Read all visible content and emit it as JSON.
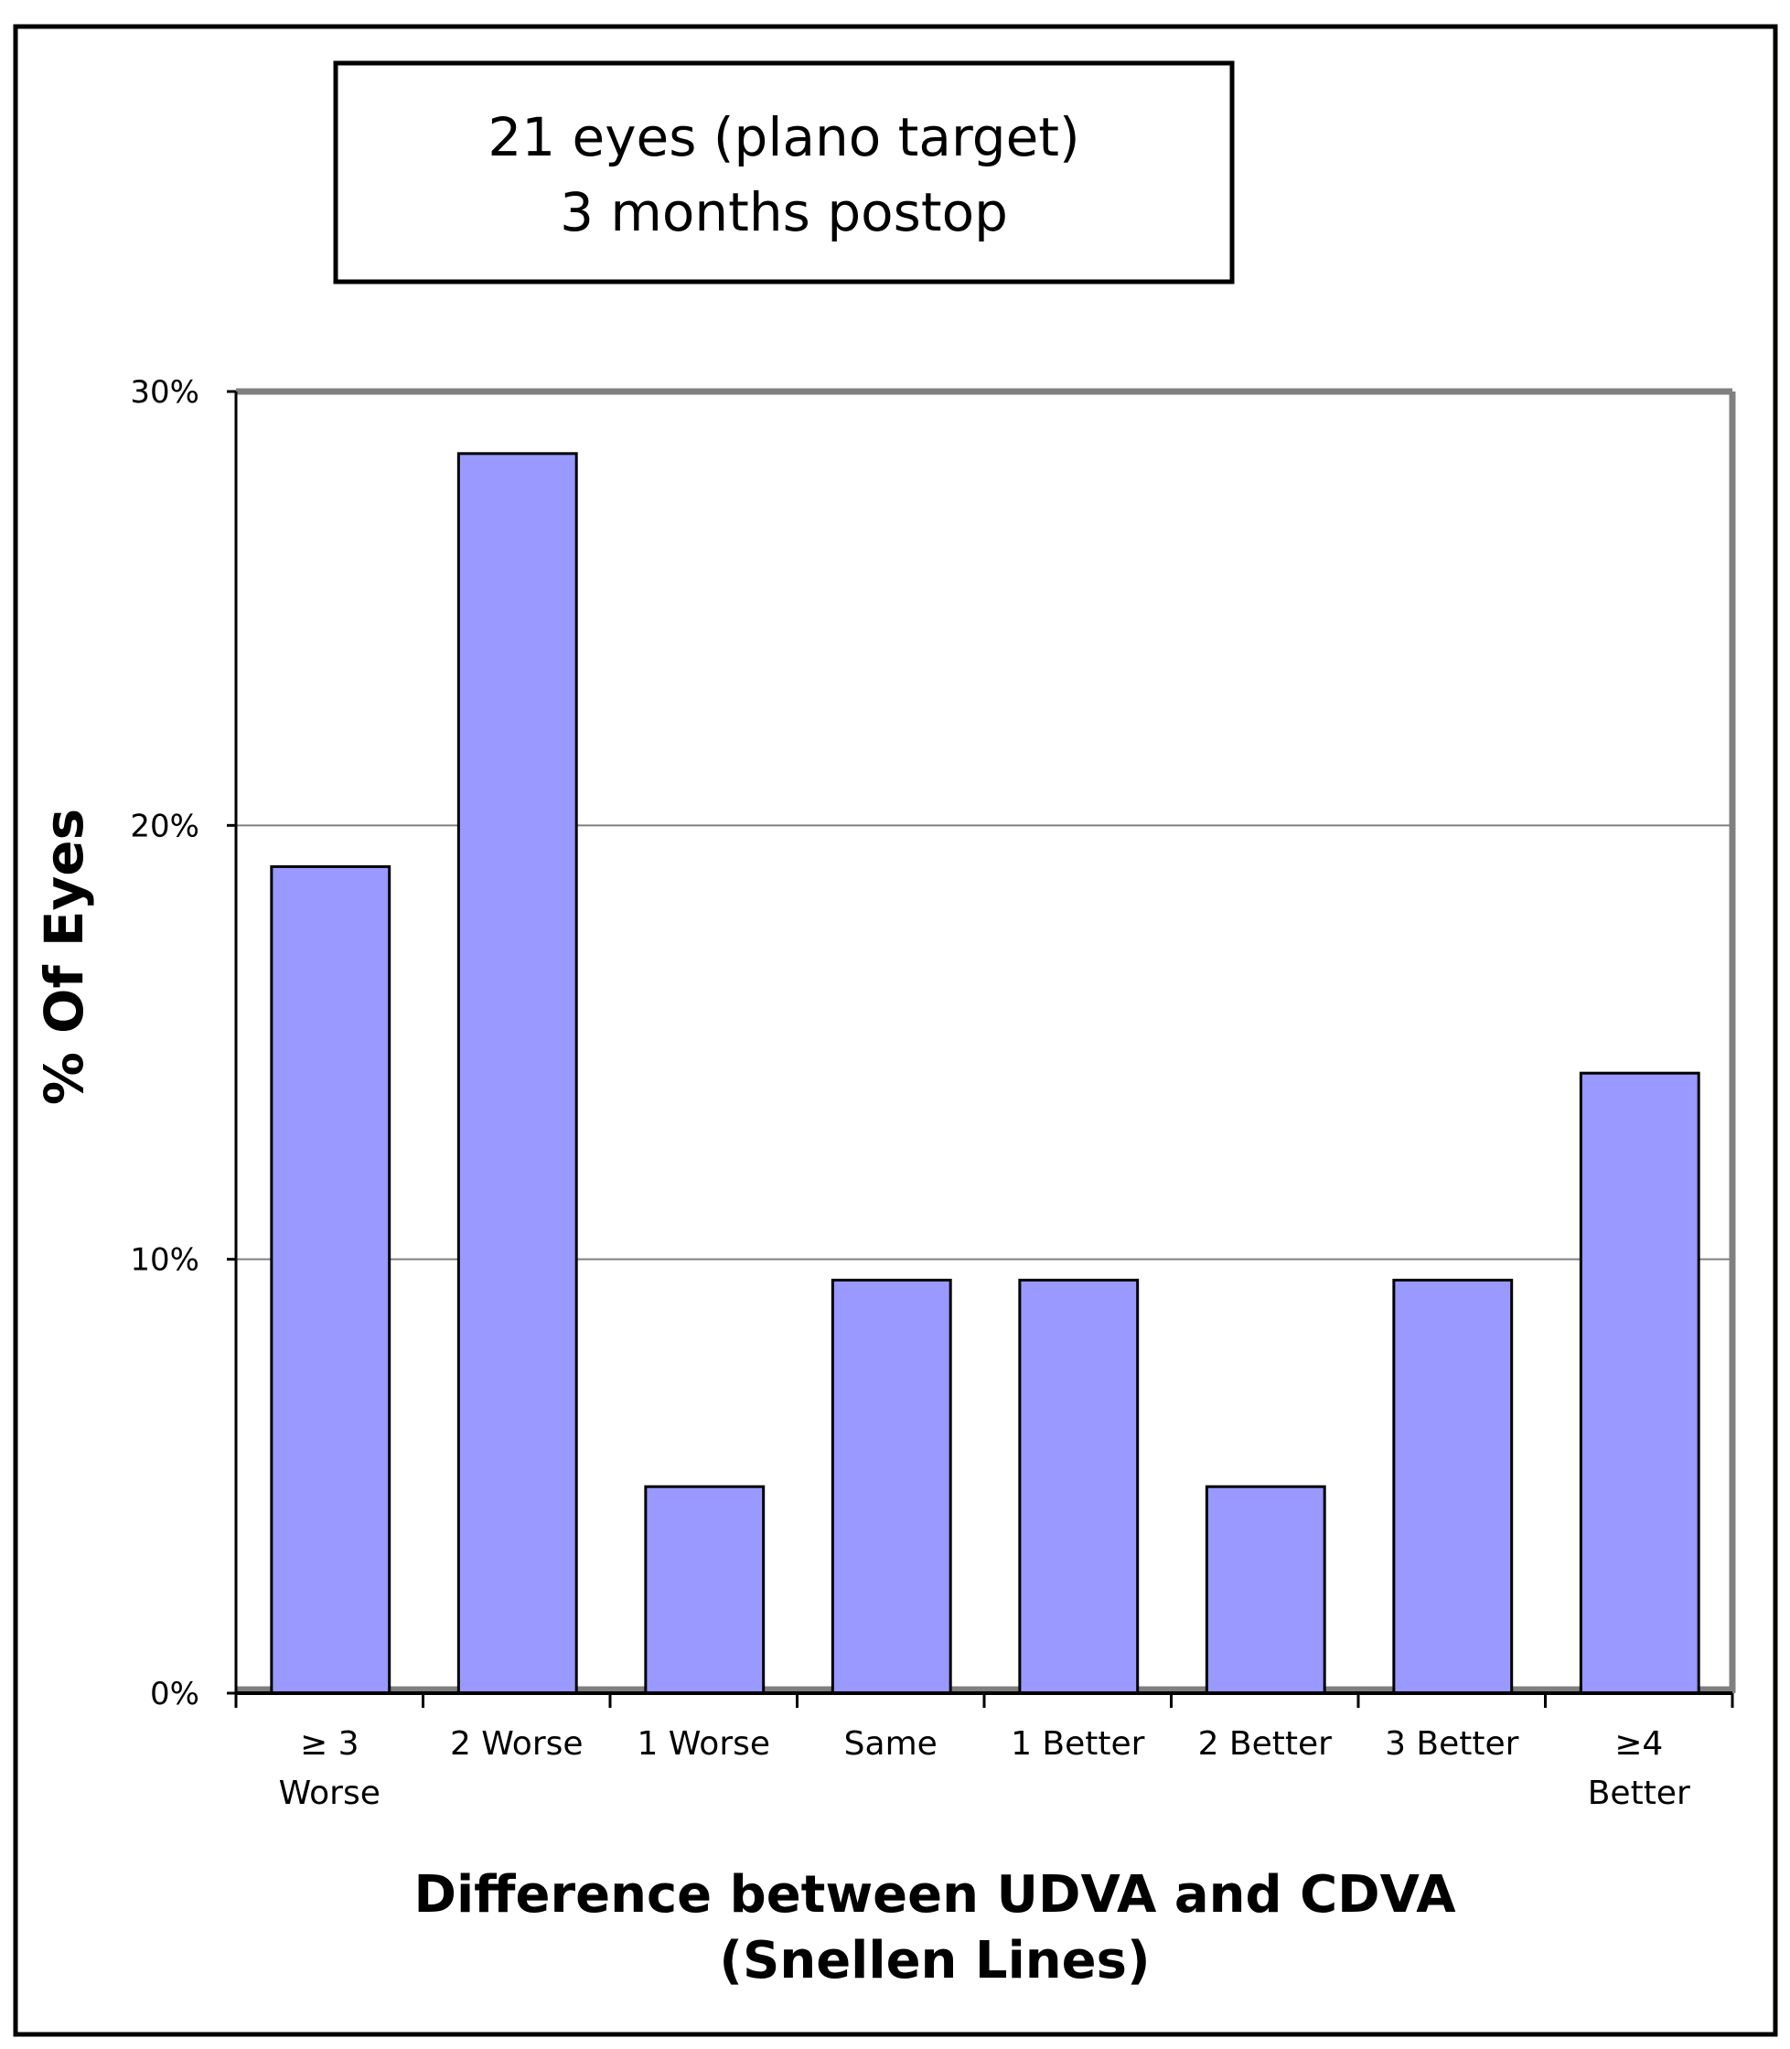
{
  "chart_data": {
    "type": "bar",
    "title": [
      "21 eyes (plano target)",
      "3 months postop"
    ],
    "categories": [
      [
        "≥ 3",
        "Worse"
      ],
      [
        "2 Worse"
      ],
      [
        "1 Worse"
      ],
      [
        "Same"
      ],
      [
        "1 Better"
      ],
      [
        "2 Better"
      ],
      [
        "3 Better"
      ],
      [
        "≥4",
        "Better"
      ]
    ],
    "values": [
      19.05,
      28.57,
      4.76,
      9.52,
      9.52,
      4.76,
      9.52,
      14.29
    ],
    "ylabel": "% Of Eyes",
    "xlabel": [
      "Difference between  UDVA and CDVA",
      "(Snellen Lines)"
    ],
    "ylim": [
      0,
      30
    ],
    "yticks": [
      "0%",
      "10%",
      "20%",
      "30%"
    ],
    "grid": true,
    "colors": {
      "bar": "#9999ff",
      "bar_edge": "#000000",
      "grid": "#808080",
      "frame": "#808080"
    }
  }
}
